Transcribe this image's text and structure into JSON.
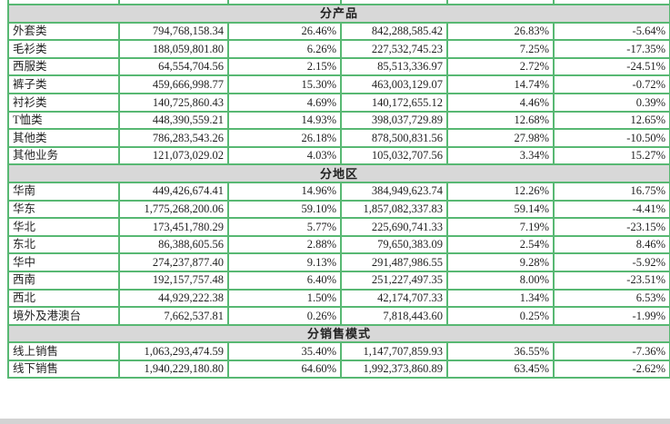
{
  "colors": {
    "border_green": "#58b873",
    "header_bg": "#d8d8d8",
    "text": "#1f1f1f",
    "footer_strip": "#d3d3d3"
  },
  "table": {
    "sections": [
      {
        "header": "分产品",
        "rows": [
          {
            "label": "外套类",
            "values": [
              "794,768,158.34",
              "26.46%",
              "842,288,585.42",
              "26.83%",
              "-5.64%"
            ]
          },
          {
            "label": "毛衫类",
            "values": [
              "188,059,801.80",
              "6.26%",
              "227,532,745.23",
              "7.25%",
              "-17.35%"
            ]
          },
          {
            "label": "西服类",
            "values": [
              "64,554,704.56",
              "2.15%",
              "85,513,336.97",
              "2.72%",
              "-24.51%"
            ]
          },
          {
            "label": "裤子类",
            "values": [
              "459,666,998.77",
              "15.30%",
              "463,003,129.07",
              "14.74%",
              "-0.72%"
            ]
          },
          {
            "label": "衬衫类",
            "values": [
              "140,725,860.43",
              "4.69%",
              "140,172,655.12",
              "4.46%",
              "0.39%"
            ]
          },
          {
            "label": "T恤类",
            "values": [
              "448,390,559.21",
              "14.93%",
              "398,037,729.89",
              "12.68%",
              "12.65%"
            ]
          },
          {
            "label": "其他类",
            "values": [
              "786,283,543.26",
              "26.18%",
              "878,500,831.56",
              "27.98%",
              "-10.50%"
            ]
          },
          {
            "label": "其他业务",
            "values": [
              "121,073,029.02",
              "4.03%",
              "105,032,707.56",
              "3.34%",
              "15.27%"
            ]
          }
        ]
      },
      {
        "header": "分地区",
        "rows": [
          {
            "label": "华南",
            "values": [
              "449,426,674.41",
              "14.96%",
              "384,949,623.74",
              "12.26%",
              "16.75%"
            ]
          },
          {
            "label": "华东",
            "values": [
              "1,775,268,200.06",
              "59.10%",
              "1,857,082,337.83",
              "59.14%",
              "-4.41%"
            ]
          },
          {
            "label": "华北",
            "values": [
              "173,451,780.29",
              "5.77%",
              "225,690,741.33",
              "7.19%",
              "-23.15%"
            ]
          },
          {
            "label": "东北",
            "values": [
              "86,388,605.56",
              "2.88%",
              "79,650,383.09",
              "2.54%",
              "8.46%"
            ]
          },
          {
            "label": "华中",
            "values": [
              "274,237,877.40",
              "9.13%",
              "291,487,986.55",
              "9.28%",
              "-5.92%"
            ]
          },
          {
            "label": "西南",
            "values": [
              "192,157,757.48",
              "6.40%",
              "251,227,497.35",
              "8.00%",
              "-23.51%"
            ]
          },
          {
            "label": "西北",
            "values": [
              "44,929,222.38",
              "1.50%",
              "42,174,707.33",
              "1.34%",
              "6.53%"
            ]
          },
          {
            "label": "境外及港澳台",
            "values": [
              "7,662,537.81",
              "0.26%",
              "7,818,443.60",
              "0.25%",
              "-1.99%"
            ]
          }
        ]
      },
      {
        "header": "分销售模式",
        "rows": [
          {
            "label": "线上销售",
            "values": [
              "1,063,293,474.59",
              "35.40%",
              "1,147,707,859.93",
              "36.55%",
              "-7.36%"
            ]
          },
          {
            "label": "线下销售",
            "values": [
              "1,940,229,180.80",
              "64.60%",
              "1,992,373,860.89",
              "63.45%",
              "-2.62%"
            ]
          }
        ]
      }
    ]
  }
}
